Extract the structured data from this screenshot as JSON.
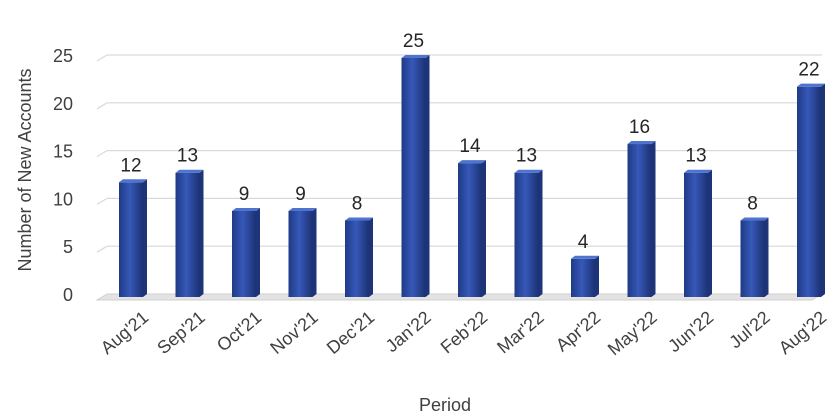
{
  "chart_data": {
    "type": "bar",
    "title": "",
    "xlabel": "Period",
    "ylabel": "Number of New Accounts",
    "categories": [
      "Aug'21",
      "Sep'21",
      "Oct'21",
      "Nov'21",
      "Dec'21",
      "Jan'22",
      "Feb'22",
      "Mar'22",
      "Apr'22",
      "May'22",
      "Jun'22",
      "Jul'22",
      "Aug'22"
    ],
    "values": [
      12,
      13,
      9,
      9,
      8,
      25,
      14,
      13,
      4,
      16,
      13,
      8,
      22
    ],
    "ylim": [
      0,
      25
    ],
    "yticks": [
      0,
      5,
      10,
      15,
      20,
      25
    ],
    "grid": true,
    "bar_color": "#2e4fa8",
    "bar_dark": "#1d3478",
    "bar_light": "#4f74cf",
    "gridline_color": "#d9d9d9"
  }
}
